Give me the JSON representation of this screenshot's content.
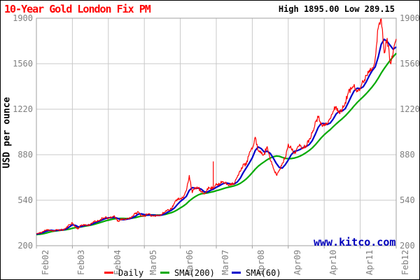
{
  "header": {
    "title": "10-Year Gold London Fix PM",
    "stats_text": "High 1895.00 Low 289.15"
  },
  "watermark": "www.kitco.com",
  "colors": {
    "title": "#ff0000",
    "stats": "#000000",
    "tick_text": "#808080",
    "grid": "#c9c9c9",
    "axis": "#a0a0a0",
    "daily": "#ff0000",
    "sma200": "#00aa00",
    "sma60": "#0000cc",
    "watermark": "#0000bb",
    "background": "#ffffff"
  },
  "legend": [
    {
      "label": "Daily",
      "color": "#ff0000"
    },
    {
      "label": "SMA(200)",
      "color": "#00aa00"
    },
    {
      "label": "SMA(60)",
      "color": "#0000cc"
    }
  ],
  "chart_data": {
    "type": "line",
    "title": "10-Year Gold London Fix PM",
    "ylabel": "USD per ounce",
    "xlabel": "",
    "ylim": [
      200,
      1900
    ],
    "y_ticks": [
      1900,
      1560,
      1220,
      880,
      540,
      200
    ],
    "x_tick_labels": [
      "Feb02",
      "Feb03",
      "Feb04",
      "Mar05",
      "Mar06",
      "Mar07",
      "Apr08",
      "Apr09",
      "Apr10",
      "Apr11",
      "Feb12"
    ],
    "high": 1895.0,
    "low": 289.15,
    "grid": true,
    "legend_position": "bottom",
    "x_unit": "monthly points from Feb 2002 to Feb 2012",
    "series": [
      {
        "name": "Daily",
        "color": "#ff0000",
        "values": [
          290,
          294,
          303,
          314,
          321,
          313,
          310,
          319,
          317,
          319,
          333,
          357,
          370,
          340,
          328,
          355,
          356,
          351,
          360,
          379,
          379,
          389,
          406,
          414,
          405,
          408,
          424,
          383,
          392,
          398,
          400,
          405,
          420,
          439,
          452,
          424,
          423,
          434,
          429,
          422,
          430,
          424,
          437,
          456,
          470,
          476,
          515,
          550,
          555,
          557,
          611,
          725,
          596,
          634,
          632,
          599,
          586,
          627,
          630,
          631,
          665,
          655,
          679,
          667,
          655,
          665,
          665,
          713,
          755,
          810,
          804,
          890,
          922,
          1011,
          910,
          889,
          889,
          940,
          839,
          780,
          730,
          760,
          816,
          859,
          960,
          924,
          890,
          929,
          946,
          934,
          949,
          997,
          1043,
          1127,
          1160,
          1118,
          1095,
          1113,
          1148,
          1205,
          1240,
          1193,
          1216,
          1271,
          1342,
          1370,
          1405,
          1360,
          1373,
          1424,
          1473,
          1512,
          1529,
          1600,
          1825,
          1895,
          1640,
          1750,
          1570,
          1650,
          1745
        ]
      },
      {
        "name": "SMA(200)",
        "color": "#00aa00",
        "values": [
          283,
          285,
          288,
          293,
          299,
          305,
          309,
          312,
          315,
          317,
          320,
          324,
          330,
          335,
          338,
          341,
          345,
          349,
          353,
          358,
          364,
          371,
          378,
          385,
          391,
          396,
          401,
          403,
          404,
          404,
          403,
          404,
          406,
          410,
          416,
          421,
          425,
          428,
          430,
          430,
          429,
          429,
          430,
          434,
          440,
          447,
          456,
          468,
          482,
          496,
          513,
          534,
          552,
          567,
          580,
          588,
          591,
          594,
          599,
          604,
          611,
          617,
          624,
          631,
          637,
          642,
          648,
          655,
          666,
          681,
          699,
          721,
          746,
          772,
          794,
          812,
          827,
          843,
          855,
          865,
          870,
          868,
          860,
          853,
          850,
          851,
          855,
          861,
          870,
          882,
          896,
          912,
          931,
          954,
          980,
          1006,
          1029,
          1049,
          1068,
          1089,
          1110,
          1130,
          1149,
          1170,
          1194,
          1219,
          1245,
          1270,
          1292,
          1313,
          1336,
          1361,
          1387,
          1416,
          1451,
          1490,
          1524,
          1555,
          1585,
          1612,
          1638
        ]
      },
      {
        "name": "SMA(60)",
        "color": "#0000cc",
        "values": [
          287,
          291,
          297,
          306,
          313,
          316,
          312,
          315,
          317,
          318,
          325,
          340,
          356,
          352,
          340,
          343,
          351,
          353,
          356,
          366,
          376,
          383,
          393,
          403,
          408,
          409,
          412,
          405,
          396,
          394,
          397,
          401,
          408,
          420,
          436,
          438,
          432,
          428,
          429,
          428,
          427,
          426,
          430,
          440,
          453,
          465,
          481,
          507,
          531,
          548,
          569,
          613,
          634,
          629,
          630,
          622,
          603,
          600,
          613,
          622,
          637,
          648,
          661,
          669,
          666,
          661,
          662,
          676,
          705,
          746,
          781,
          818,
          857,
          912,
          938,
          925,
          900,
          906,
          890,
          855,
          815,
          785,
          780,
          805,
          840,
          880,
          905,
          910,
          920,
          934,
          941,
          956,
          985,
          1033,
          1084,
          1114,
          1113,
          1106,
          1117,
          1146,
          1185,
          1205,
          1207,
          1224,
          1268,
          1316,
          1358,
          1377,
          1374,
          1388,
          1424,
          1470,
          1508,
          1536,
          1609,
          1705,
          1742,
          1727,
          1697,
          1668,
          1685
        ]
      }
    ],
    "anomaly_spike": {
      "month_index": 59,
      "value": 830
    }
  }
}
